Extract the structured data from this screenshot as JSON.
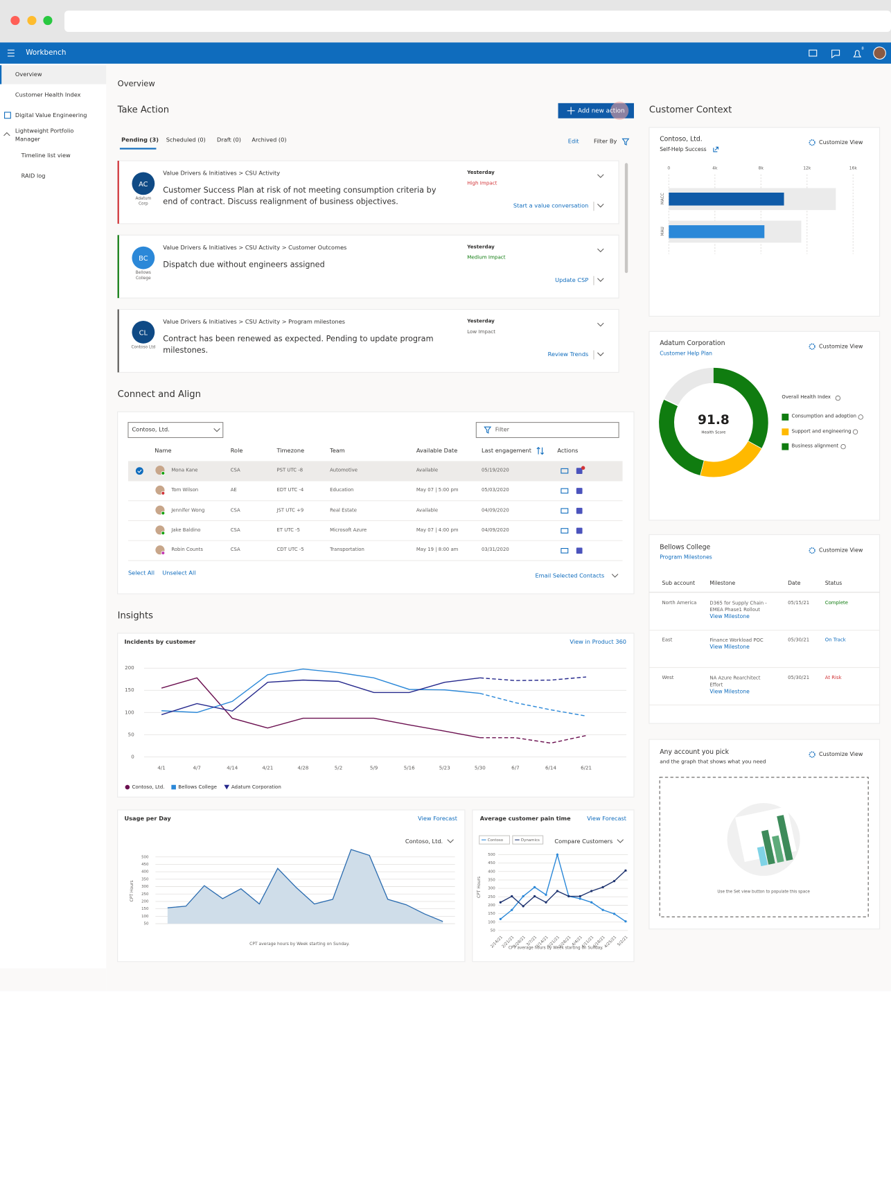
{
  "app": {
    "title": "Workbench",
    "notification_count": 8
  },
  "nav": {
    "items": [
      "Overview",
      "Customer Health Index",
      "Digital Value Engineering",
      "Lightweight Portfolio Manager",
      "Timeline list view",
      "RAID log"
    ],
    "selected": 0
  },
  "page_title": "Overview",
  "take_action": {
    "title": "Take Action",
    "add_button": "Add new action",
    "tabs": [
      "Pending (3)",
      "Scheduled (0)",
      "Draft (0)",
      "Archived (0)"
    ],
    "active_tab": 0,
    "edit": "Edit",
    "filter_by": "Filter By",
    "cards": [
      {
        "initials": "AC",
        "org": "Adatum Corp",
        "path": "Value Drivers & Initiatives > CSU Activity",
        "text": "Customer Success Plan at risk of not meeting consumption criteria by end of contract. Discuss realignment of business objectives.",
        "date": "Yesterday",
        "impact": "High Impact",
        "impact_color": "#d13438",
        "border_color": "#d13438",
        "avatar_color": "#0f4a85",
        "action": "Start a value conversation"
      },
      {
        "initials": "BC",
        "org": "Bellows College",
        "path": "Value Drivers & Initiatives > CSU Activity > Customer Outcomes",
        "text": "Dispatch due without engineers assigned",
        "date": "Yesterday",
        "impact": "Medium Impact",
        "impact_color": "#107c10",
        "border_color": "#107c10",
        "avatar_color": "#2b88d8",
        "action": "Update CSP"
      },
      {
        "initials": "CL",
        "org": "Contoso Ltd",
        "path": "Value Drivers & Initiatives > CSU Activity > Program milestones",
        "text": "Contract has been renewed as expected. Pending to update program milestones.",
        "date": "Yesterday",
        "impact": "Low Impact",
        "impact_color": "#605e5c",
        "border_color": "#605e5c",
        "avatar_color": "#0f4a85",
        "action": "Review Trends"
      }
    ]
  },
  "connect": {
    "title": "Connect and Align",
    "account": "Contoso, Ltd.",
    "filter": "Filter",
    "columns": [
      "Name",
      "Role",
      "Timezone",
      "Team",
      "Available Date",
      "Last engagement",
      "Actions"
    ],
    "selected_row": 0,
    "rows": [
      [
        "Mona Kane",
        "CSA",
        "PST UTC -8",
        "Automotive",
        "Available",
        "05/19/2020"
      ],
      [
        "Tom Wilson",
        "AE",
        "EDT UTC -4",
        "Education",
        "May 07 | 5:00 pm",
        "05/03/2020"
      ],
      [
        "Jennifer Wong",
        "CSA",
        "JST UTC +9",
        "Real Estate",
        "Available",
        "04/09/2020"
      ],
      [
        "Jake Baldino",
        "CSA",
        "ET UTC -5",
        "Microsoft Azure",
        "May 07 | 4:00 pm",
        "04/09/2020"
      ],
      [
        "Robin Counts",
        "CSA",
        "CDT UTC -5",
        "Transportation",
        "May 19 | 8:00 am",
        "03/31/2020"
      ]
    ],
    "select_all": "Select All",
    "unselect_all": "Unselect All",
    "email_selected": "Email Selected Contacts"
  },
  "insights": {
    "title": "Insights",
    "incidents": {
      "type": "line",
      "title": "Incidents by customer",
      "link": "View in Product 360",
      "categories": [
        "4/1",
        "4/7",
        "4/14",
        "4/21",
        "4/28",
        "5/2",
        "5/9",
        "5/16",
        "5/23",
        "5/30",
        "6/7",
        "6/14",
        "6/21"
      ],
      "ylim": [
        0,
        200
      ],
      "yticks": [
        0,
        50,
        100,
        150,
        200
      ],
      "grid": true,
      "forecast_from": 9,
      "series": [
        {
          "name": "Contoso, Ltd.",
          "color": "#6b1050",
          "marker": "circle",
          "values": [
            155,
            178,
            87,
            65,
            87,
            87,
            87,
            72,
            58,
            43,
            43,
            31,
            48
          ]
        },
        {
          "name": "Bellows College",
          "color": "#2b88d8",
          "marker": "square",
          "values": [
            104,
            100,
            125,
            185,
            198,
            190,
            178,
            152,
            151,
            143,
            122,
            106,
            92
          ]
        },
        {
          "name": "Adatum Corporation",
          "color": "#25288c",
          "marker": "triangle",
          "values": [
            95,
            120,
            103,
            168,
            173,
            170,
            145,
            145,
            168,
            178,
            172,
            173,
            180
          ]
        }
      ]
    },
    "usage": {
      "type": "area",
      "title": "Usage per Day",
      "link": "View Forecast",
      "selector": "Contoso, Ltd.",
      "y_label": "CPT Hours",
      "footnote": "CPT average hours by Week starting on Sunday.",
      "color": "#2b6cb0",
      "fill": "#cfdde9",
      "ylim": [
        50,
        560
      ],
      "yticks": [
        50,
        100,
        150,
        200,
        250,
        300,
        350,
        400,
        450,
        500
      ],
      "grid": true,
      "values": [
        157,
        168,
        306,
        219,
        285,
        183,
        423,
        295,
        183,
        214,
        550,
        510,
        214,
        178,
        116,
        65
      ]
    },
    "pain": {
      "type": "line",
      "title": "Average customer pain time",
      "link": "View Forecast",
      "selector": "Compare Customers",
      "y_label": "CPT Hours",
      "footnote": "CPT average hours by Week starting on Sunday.",
      "categories": [
        "2/14/21",
        "2/21/21",
        "2/28/21",
        "3/7/21",
        "3/14/21",
        "3/21/21",
        "3/28/21",
        "4/4/21",
        "4/11/21",
        "4/18/21",
        "4/25/21",
        "5/2/21"
      ],
      "ylim": [
        40,
        510
      ],
      "yticks": [
        50,
        100,
        150,
        200,
        250,
        300,
        350,
        400,
        450,
        500
      ],
      "grid": true,
      "series": [
        {
          "name": "Contoso",
          "color": "#2b88d8",
          "values": [
            118,
            172,
            253,
            307,
            262,
            500,
            253,
            239,
            217,
            172,
            149,
            104
          ]
        },
        {
          "name": "Dynamics",
          "color": "#1f3470",
          "values": [
            217,
            253,
            194,
            253,
            217,
            284,
            253,
            253,
            284,
            307,
            343,
            406
          ]
        }
      ]
    }
  },
  "context": {
    "title": "Customer Context",
    "customize": "Customize View",
    "self_help": {
      "type": "bar",
      "orientation": "horizontal",
      "account": "Contoso, Ltd.",
      "subtitle": "Self-Help Success",
      "categories": [
        "MACC",
        "MAU"
      ],
      "values": [
        10000,
        8300
      ],
      "targets": [
        14500,
        11500
      ],
      "colors": [
        "#0f5ba8",
        "#2b88d8"
      ],
      "target_color": "#ebebeb",
      "xlim": [
        0,
        16000
      ],
      "xticks": [
        0,
        {
          "value": 4000,
          "label": "4k"
        },
        {
          "value": 8000,
          "label": "8k"
        },
        {
          "value": 12000,
          "label": "12k"
        },
        {
          "value": 16000,
          "label": "16k"
        }
      ],
      "grid": true
    },
    "health": {
      "type": "donut",
      "account": "Adatum Corporation",
      "subtitle": "Customer Help Plan",
      "score": 91.8,
      "score_label": "Health Score",
      "legend_title": "Overall Health Index",
      "categories": [
        "Consumption and adoption",
        "Support and engineering",
        "Business alignment"
      ],
      "values": [
        33,
        21,
        28
      ],
      "max": 100,
      "colors": [
        "#107c10",
        "#ffb900",
        "#107c10"
      ],
      "track_color": "#e8e8e8"
    },
    "milestones": {
      "account": "Bellows College",
      "subtitle": "Program Milestones",
      "columns": [
        "Sub account",
        "Milestone",
        "Date",
        "Status"
      ],
      "link": "View Milestone",
      "rows": [
        {
          "sub": "North America",
          "milestone": "D365 for Supply Chain - EMEA Phase1 Rollout",
          "date": "05/15/21",
          "status": "Complete",
          "status_color": "#107c10"
        },
        {
          "sub": "East",
          "milestone": "Finance Workload POC",
          "date": "05/30/21",
          "status": "On Track",
          "status_color": "#0f6cbd"
        },
        {
          "sub": "West",
          "milestone": "NA Azure Rearchitect Effort",
          "date": "05/30/21",
          "status": "At Risk",
          "status_color": "#d13438"
        }
      ]
    },
    "placeholder": {
      "title": "Any account you pick",
      "subtitle": "and the graph that shows what you need",
      "hint": "Use the Set view button to populate this space"
    }
  }
}
